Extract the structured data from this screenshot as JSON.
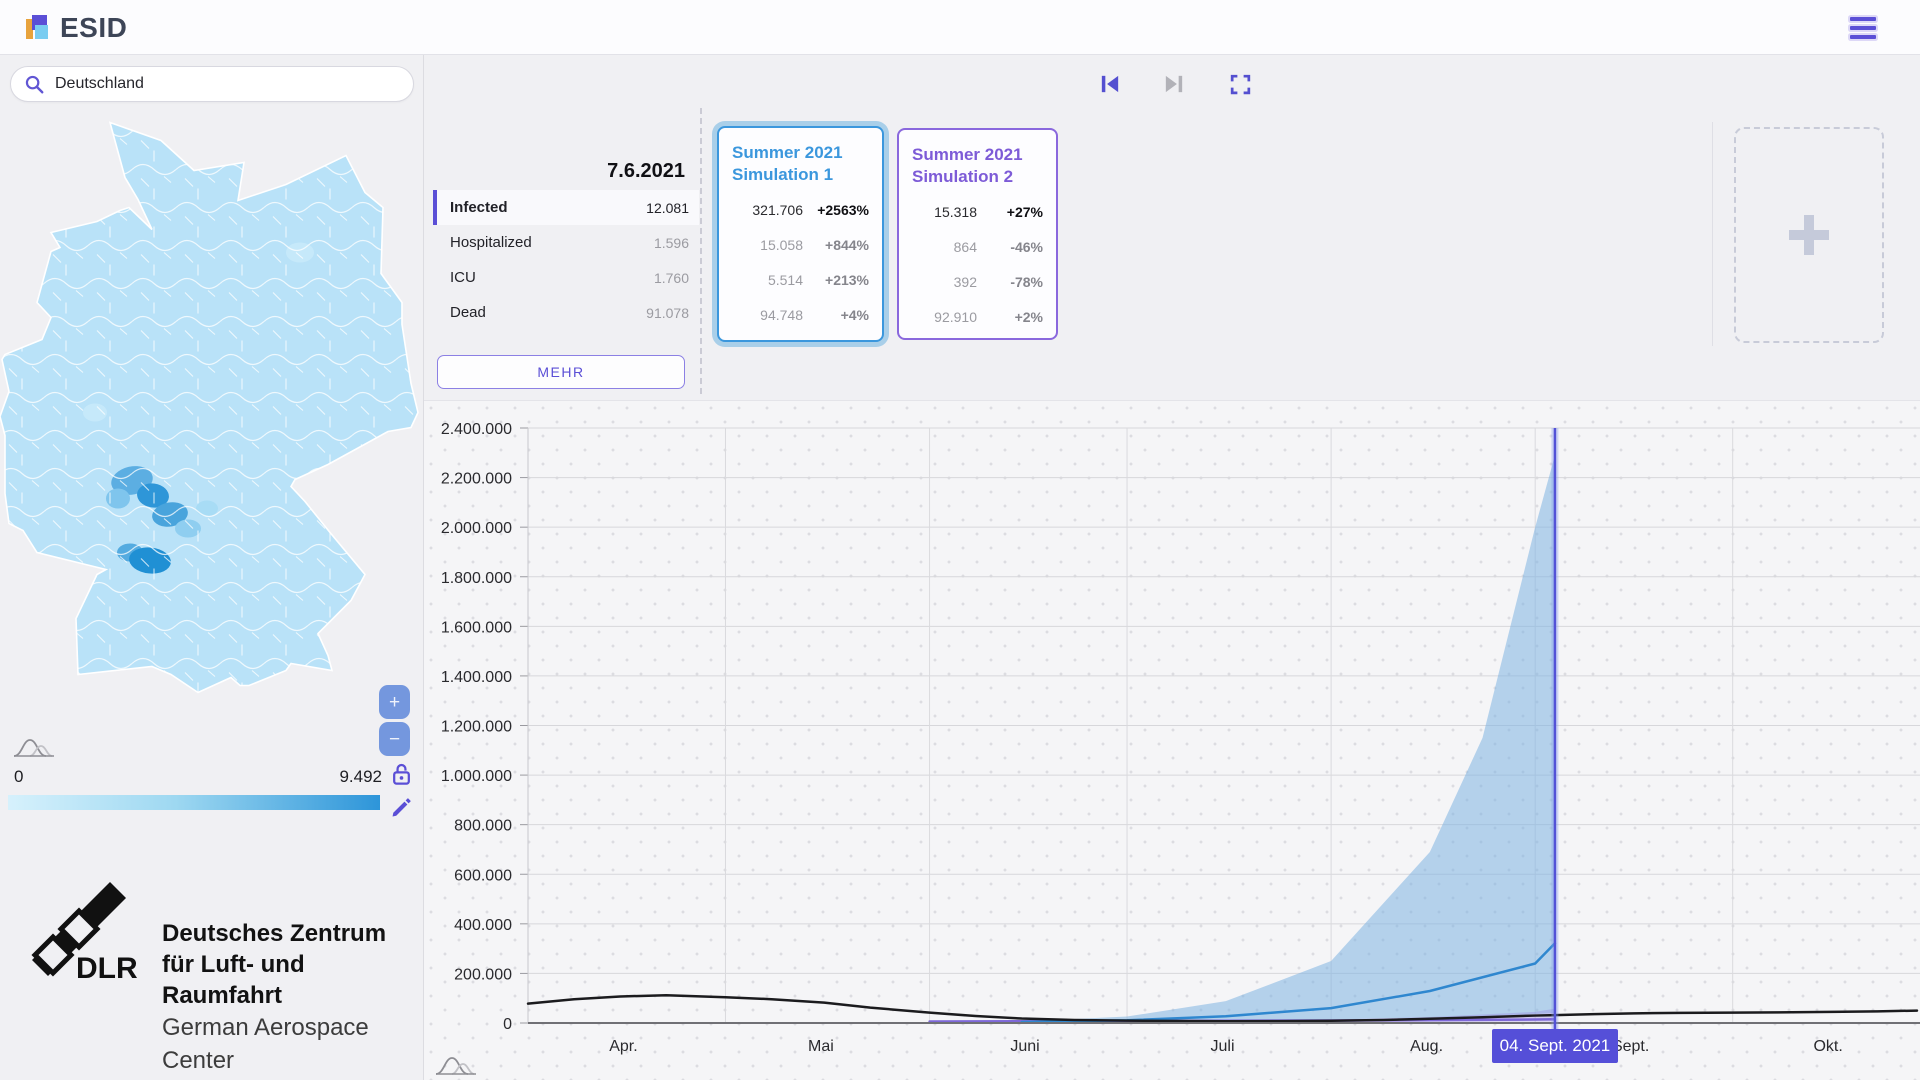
{
  "app": {
    "title": "ESID"
  },
  "sidebar": {
    "search": {
      "value": "Deutschland"
    },
    "map": {
      "zoom_in": "+",
      "zoom_out": "−",
      "legend_min": "0",
      "legend_max": "9.492"
    },
    "dlr": {
      "abbr": "DLR",
      "line1": "Deutsches Zentrum",
      "line2": "für Luft- und Raumfahrt",
      "line3": "German Aerospace Center"
    }
  },
  "scenario_header": {
    "date": "7.6.2021",
    "compartments": [
      {
        "label": "Infected",
        "value": "12.081"
      },
      {
        "label": "Hospitalized",
        "value": "1.596"
      },
      {
        "label": "ICU",
        "value": "1.760"
      },
      {
        "label": "Dead",
        "value": "91.078"
      }
    ],
    "more_button": "MEHR",
    "cards": [
      {
        "title_line1": "Summer 2021",
        "title_line2": "Simulation 1",
        "color": "#3b97dd",
        "selected": true,
        "rows": [
          {
            "value": "321.706",
            "change": "+2563%"
          },
          {
            "value": "15.058",
            "change": "+844%"
          },
          {
            "value": "5.514",
            "change": "+213%"
          },
          {
            "value": "94.748",
            "change": "+4%"
          }
        ]
      },
      {
        "title_line1": "Summer 2021",
        "title_line2": "Simulation 2",
        "color": "#7d5bd7",
        "selected": false,
        "rows": [
          {
            "value": "15.318",
            "change": "+27%"
          },
          {
            "value": "864",
            "change": "-46%"
          },
          {
            "value": "392",
            "change": "-78%"
          },
          {
            "value": "92.910",
            "change": "+2%"
          }
        ]
      }
    ]
  },
  "colors": {
    "accent_indigo": "#5b4fd6",
    "simulation1_blue": "#3b97dd",
    "simulation2_purple": "#7d5bd7",
    "map_scale_low": "#d6f1fc",
    "map_scale_high": "#2d95d9",
    "selected_date_line": "#5352d6"
  },
  "chart_data": {
    "type": "line",
    "title": "",
    "xlabel": "",
    "ylabel": "",
    "ylim": [
      0,
      2400000
    ],
    "grid": true,
    "y_tick_step": 200000,
    "y_tick_labels": [
      "0",
      "200.000",
      "400.000",
      "600.000",
      "800.000",
      "1.000.000",
      "1.200.000",
      "1.400.000",
      "1.600.000",
      "1.800.000",
      "2.000.000",
      "2.200.000",
      "2.400.000"
    ],
    "x_tick_labels": [
      "Apr.",
      "Mai",
      "Juni",
      "Juli",
      "Aug.",
      "Sept.",
      "Okt."
    ],
    "month_start_days": [
      0,
      30,
      61,
      91,
      122,
      153,
      183
    ],
    "x_total_days": 211,
    "selected_day": 156,
    "selected_date_label": "04. Sept. 2021",
    "series": [
      {
        "name": "Summer 2021 Simulation 1 percentile band",
        "type": "band",
        "color": "rgba(125,179,226,0.55)",
        "x": [
          75,
          91,
          106,
          122,
          137,
          145,
          153,
          156
        ],
        "upper": [
          6000,
          26000,
          88000,
          250000,
          690000,
          1150000,
          2000000,
          2290000
        ],
        "lower": [
          2000,
          4000,
          8000,
          14000,
          22000,
          28000,
          36000,
          40000
        ]
      },
      {
        "name": "Summer 2021 Simulation 2 percentile band",
        "type": "band",
        "color": "rgba(150,130,225,0.35)",
        "x": [
          122,
          137,
          153,
          156
        ],
        "upper": [
          14000,
          24000,
          45000,
          58000
        ],
        "lower": [
          3000,
          4000,
          5000,
          5000
        ]
      },
      {
        "name": "Summer 2021 Simulation 2",
        "type": "line",
        "color": "#7e68d8",
        "width": 2.5,
        "x": [
          61,
          91,
          122,
          153,
          156
        ],
        "values": [
          6000,
          8000,
          10000,
          14000,
          15318
        ]
      },
      {
        "name": "Summer 2021 Simulation 1",
        "type": "line",
        "color": "#2f87cf",
        "width": 2.5,
        "x": [
          75,
          91,
          106,
          122,
          137,
          153,
          156
        ],
        "values": [
          4000,
          11000,
          27000,
          60000,
          129000,
          240000,
          321706
        ]
      },
      {
        "name": "Case Data",
        "type": "line",
        "color": "#1b1b1e",
        "width": 2.5,
        "x": [
          0,
          7,
          14,
          21,
          30,
          37,
          45,
          52,
          61,
          68,
          75,
          83,
          91,
          99,
          106,
          114,
          122,
          130,
          137,
          145,
          153,
          156,
          162,
          168,
          175,
          183,
          190,
          198,
          205,
          211
        ],
        "values": [
          78000,
          96000,
          107000,
          112000,
          104000,
          96000,
          82000,
          62000,
          42000,
          28000,
          18000,
          12000,
          9500,
          8000,
          7000,
          7500,
          9000,
          12000,
          17000,
          23000,
          30000,
          32000,
          36000,
          39000,
          41000,
          42000,
          43000,
          45000,
          47000,
          50000
        ]
      }
    ]
  }
}
